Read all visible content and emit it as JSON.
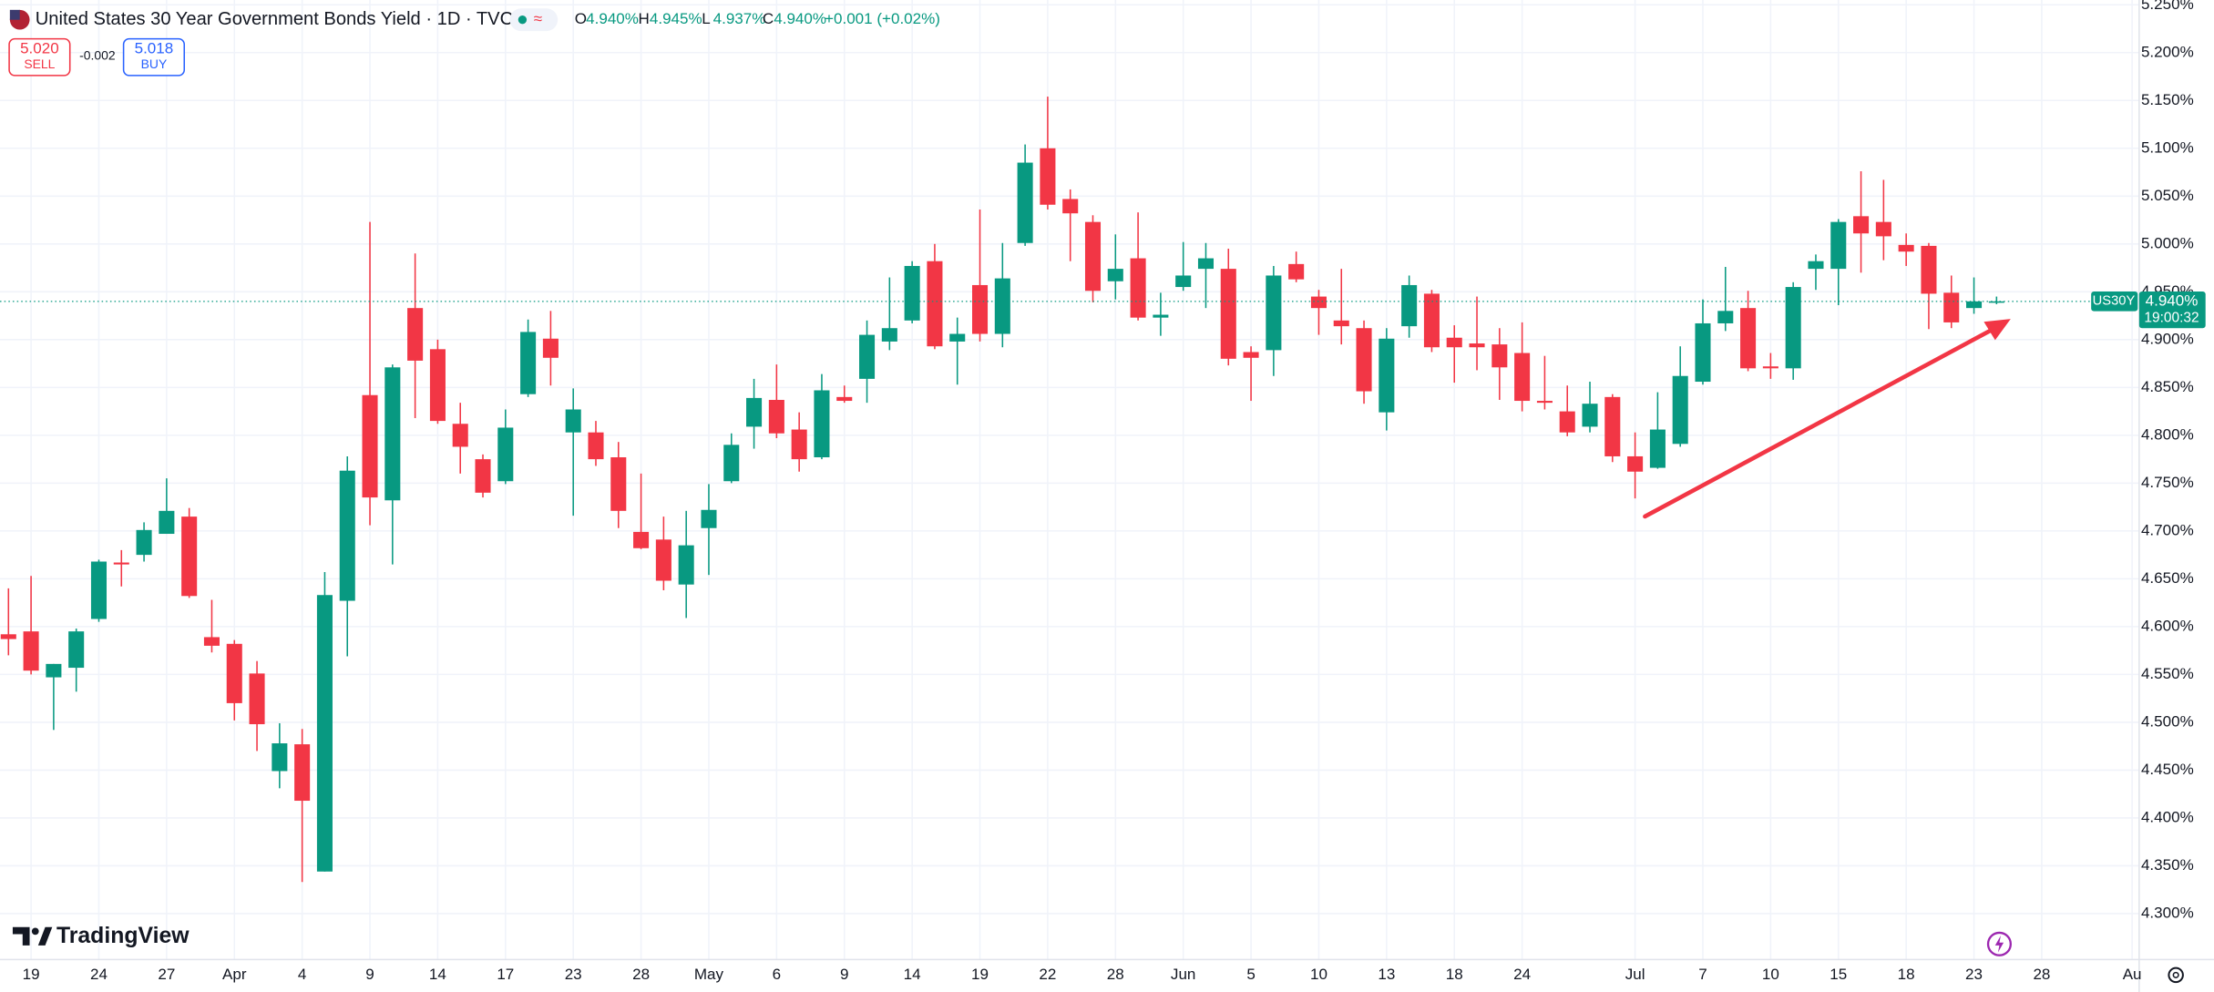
{
  "header": {
    "title": "United States 30 Year Government Bonds Yield · 1D · TVC",
    "ohlc": [
      {
        "label": "O",
        "value": "4.940%"
      },
      {
        "label": "H",
        "value": "4.945%"
      },
      {
        "label": "L",
        "value": "4.937%"
      },
      {
        "label": "C",
        "value": "4.940%"
      }
    ],
    "change": "+0.001 (+0.02%)",
    "sell": {
      "price": "5.020",
      "label": "SELL"
    },
    "spread": "-0.002",
    "buy": {
      "price": "5.018",
      "label": "BUY"
    }
  },
  "brand": "TradingView",
  "chart_data": {
    "type": "candlestick",
    "categories": [
      null,
      "19",
      null,
      null,
      "24",
      null,
      null,
      "27",
      null,
      null,
      "Apr",
      null,
      null,
      "4",
      null,
      null,
      "9",
      null,
      null,
      "14",
      null,
      null,
      "17",
      null,
      null,
      "23",
      null,
      null,
      "28",
      null,
      null,
      "May",
      null,
      null,
      "6",
      null,
      null,
      "9",
      null,
      null,
      "14",
      null,
      null,
      "19",
      null,
      null,
      "22",
      null,
      null,
      "28",
      null,
      null,
      "Jun",
      null,
      null,
      "5",
      null,
      null,
      "10",
      null,
      null,
      "13",
      null,
      null,
      "18",
      null,
      null,
      "24",
      null,
      null,
      null,
      null,
      "Jul",
      null,
      null,
      "7",
      null,
      null,
      "10",
      null,
      null,
      "15",
      null,
      null,
      "18",
      null,
      null,
      "23",
      null,
      null,
      "28",
      null,
      null,
      null,
      "Au"
    ],
    "open": [
      4.592,
      4.595,
      4.547,
      4.557,
      4.608,
      4.667,
      4.675,
      4.697,
      4.715,
      4.589,
      4.582,
      4.551,
      4.449,
      4.477,
      4.344,
      4.627,
      4.842,
      4.732,
      4.933,
      4.89,
      4.812,
      4.775,
      4.752,
      4.843,
      4.901,
      4.803,
      4.803,
      4.777,
      4.699,
      4.691,
      4.644,
      4.703,
      4.752,
      4.809,
      4.837,
      4.806,
      4.777,
      4.84,
      4.859,
      4.898,
      4.92,
      4.982,
      4.898,
      4.957,
      4.906,
      5.001,
      5.1,
      5.047,
      5.023,
      4.961,
      4.985,
      4.923,
      4.955,
      4.974,
      4.974,
      4.887,
      4.889,
      4.979,
      4.945,
      4.92,
      4.912,
      4.824,
      4.914,
      4.948,
      4.902,
      4.896,
      4.895,
      4.886,
      4.836,
      4.825,
      4.809,
      4.84,
      4.778,
      4.766,
      4.791,
      4.856,
      4.917,
      4.933,
      4.872,
      4.87,
      4.974,
      4.974,
      5.029,
      5.023,
      4.999,
      4.998,
      4.949,
      4.933,
      4.94,
      null,
      null,
      null,
      null,
      null,
      null
    ],
    "high": [
      4.64,
      4.653,
      4.561,
      4.598,
      4.67,
      4.68,
      4.709,
      4.755,
      4.724,
      4.628,
      4.586,
      4.564,
      4.499,
      4.493,
      4.657,
      4.778,
      5.023,
      4.874,
      4.99,
      4.9,
      4.834,
      4.78,
      4.827,
      4.921,
      4.93,
      4.849,
      4.815,
      4.793,
      4.76,
      4.715,
      4.721,
      4.749,
      4.802,
      4.859,
      4.874,
      4.824,
      4.864,
      4.852,
      4.92,
      4.965,
      4.982,
      5.0,
      4.923,
      5.036,
      5.001,
      5.104,
      5.154,
      5.057,
      5.03,
      5.01,
      5.033,
      4.949,
      5.002,
      5.001,
      4.995,
      4.893,
      4.977,
      4.992,
      4.952,
      4.974,
      4.92,
      4.912,
      4.967,
      4.952,
      4.915,
      4.945,
      4.912,
      4.918,
      4.883,
      4.852,
      4.856,
      4.843,
      4.803,
      4.845,
      4.893,
      4.942,
      4.976,
      4.951,
      4.886,
      4.96,
      4.989,
      5.026,
      5.076,
      5.067,
      5.011,
      5.001,
      4.967,
      4.965,
      4.945,
      null,
      null,
      null,
      null,
      null,
      null
    ],
    "low": [
      4.57,
      4.55,
      4.492,
      4.532,
      4.605,
      4.642,
      4.668,
      4.697,
      4.63,
      4.573,
      4.502,
      4.47,
      4.431,
      4.333,
      4.344,
      4.569,
      4.706,
      4.665,
      4.818,
      4.812,
      4.76,
      4.735,
      4.749,
      4.84,
      4.852,
      4.716,
      4.768,
      4.703,
      4.681,
      4.638,
      4.609,
      4.654,
      4.75,
      4.786,
      4.797,
      4.762,
      4.775,
      4.834,
      4.834,
      4.889,
      4.917,
      4.89,
      4.853,
      4.898,
      4.892,
      4.998,
      5.036,
      4.982,
      4.939,
      4.942,
      4.92,
      4.904,
      4.951,
      4.933,
      4.873,
      4.836,
      4.862,
      4.96,
      4.905,
      4.895,
      4.833,
      4.805,
      4.902,
      4.887,
      4.855,
      4.868,
      4.837,
      4.825,
      4.827,
      4.799,
      4.803,
      4.772,
      4.734,
      4.765,
      4.788,
      4.853,
      4.909,
      4.867,
      4.859,
      4.858,
      4.952,
      4.936,
      4.97,
      4.983,
      4.977,
      4.911,
      4.912,
      4.927,
      4.937,
      null,
      null,
      null,
      null,
      null,
      null
    ],
    "close": [
      4.587,
      4.554,
      4.561,
      4.595,
      4.668,
      4.665,
      4.701,
      4.721,
      4.632,
      4.58,
      4.52,
      4.498,
      4.478,
      4.418,
      4.633,
      4.763,
      4.735,
      4.871,
      4.878,
      4.815,
      4.788,
      4.74,
      4.808,
      4.908,
      4.881,
      4.827,
      4.775,
      4.721,
      4.682,
      4.648,
      4.685,
      4.722,
      4.79,
      4.839,
      4.802,
      4.775,
      4.847,
      4.836,
      4.905,
      4.912,
      4.977,
      4.893,
      4.906,
      4.906,
      4.964,
      5.085,
      5.041,
      5.032,
      4.951,
      4.974,
      4.923,
      4.926,
      4.967,
      4.985,
      4.88,
      4.881,
      4.967,
      4.963,
      4.933,
      4.914,
      4.846,
      4.901,
      4.957,
      4.892,
      4.892,
      4.892,
      4.871,
      4.836,
      4.834,
      4.803,
      4.833,
      4.778,
      4.762,
      4.806,
      4.862,
      4.917,
      4.93,
      4.87,
      4.87,
      4.955,
      4.982,
      5.023,
      5.011,
      5.008,
      4.992,
      4.948,
      4.918,
      4.94,
      4.94,
      null,
      null,
      null,
      null,
      null,
      null
    ],
    "up_color": "#089981",
    "down_color": "#f23645",
    "ylim": [
      4.252,
      5.255
    ],
    "yticks": [
      {
        "value": 4.3,
        "label": "4.300%"
      },
      {
        "value": 4.35,
        "label": "4.350%"
      },
      {
        "value": 4.4,
        "label": "4.400%"
      },
      {
        "value": 4.45,
        "label": "4.450%"
      },
      {
        "value": 4.5,
        "label": "4.500%"
      },
      {
        "value": 4.55,
        "label": "4.550%"
      },
      {
        "value": 4.6,
        "label": "4.600%"
      },
      {
        "value": 4.65,
        "label": "4.650%"
      },
      {
        "value": 4.7,
        "label": "4.700%"
      },
      {
        "value": 4.75,
        "label": "4.750%"
      },
      {
        "value": 4.8,
        "label": "4.800%"
      },
      {
        "value": 4.85,
        "label": "4.850%"
      },
      {
        "value": 4.9,
        "label": "4.900%"
      },
      {
        "value": 4.95,
        "label": "4.950%"
      },
      {
        "value": 5.0,
        "label": "5.000%"
      },
      {
        "value": 5.05,
        "label": "5.050%"
      },
      {
        "value": 5.1,
        "label": "5.100%"
      },
      {
        "value": 5.15,
        "label": "5.150%"
      },
      {
        "value": 5.2,
        "label": "5.200%"
      },
      {
        "value": 5.25,
        "label": "5.250%"
      }
    ],
    "grid": true,
    "symbol": "US30Y",
    "last_price": {
      "value": 4.94,
      "label": "4.940%"
    },
    "countdown": "19:00:32"
  }
}
